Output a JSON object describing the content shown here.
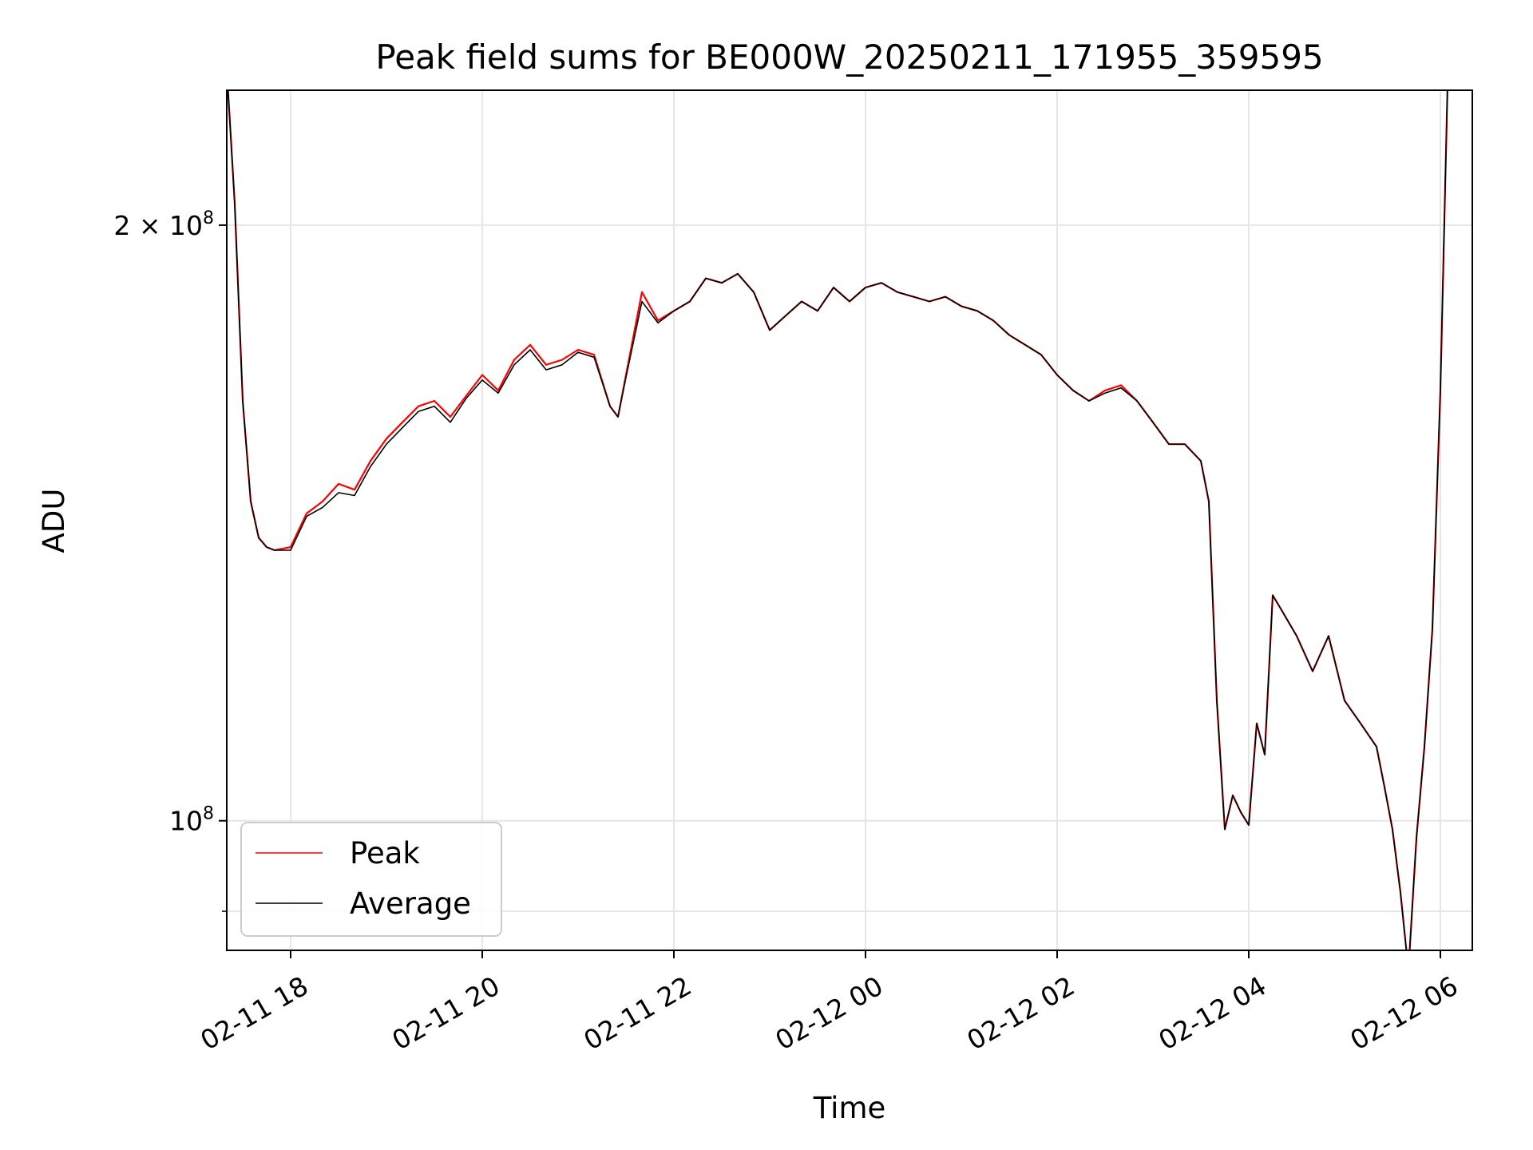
{
  "chart_data": {
    "type": "line",
    "title": "Peak field sums for BE000W_20250211_171955_359595",
    "xlabel": "Time",
    "ylabel": "ADU",
    "yscale": "log",
    "ylim": [
      86000000,
      234000000
    ],
    "xlim": [
      "2025-02-11 17:20",
      "2025-02-12 06:20"
    ],
    "grid": true,
    "legend_position": "lower-left",
    "x_ticks": [
      {
        "value": "2025-02-11 18:00",
        "label": "02-11 18"
      },
      {
        "value": "2025-02-11 20:00",
        "label": "02-11 20"
      },
      {
        "value": "2025-02-11 22:00",
        "label": "02-11 22"
      },
      {
        "value": "2025-02-12 00:00",
        "label": "02-12 00"
      },
      {
        "value": "2025-02-12 02:00",
        "label": "02-12 02"
      },
      {
        "value": "2025-02-12 04:00",
        "label": "02-12 04"
      },
      {
        "value": "2025-02-12 06:00",
        "label": "02-12 06"
      }
    ],
    "y_ticks_major": [
      {
        "value": 100000000,
        "base": "10",
        "exp": "8"
      },
      {
        "value": 200000000,
        "base": "2 × 10",
        "exp": "8"
      }
    ],
    "y_ticks_minor": [
      90000000
    ],
    "x": [
      "2025-02-11 17:20",
      "2025-02-11 17:25",
      "2025-02-11 17:30",
      "2025-02-11 17:35",
      "2025-02-11 17:40",
      "2025-02-11 17:45",
      "2025-02-11 17:50",
      "2025-02-11 18:00",
      "2025-02-11 18:10",
      "2025-02-11 18:20",
      "2025-02-11 18:30",
      "2025-02-11 18:40",
      "2025-02-11 18:50",
      "2025-02-11 19:00",
      "2025-02-11 19:10",
      "2025-02-11 19:20",
      "2025-02-11 19:30",
      "2025-02-11 19:40",
      "2025-02-11 19:50",
      "2025-02-11 20:00",
      "2025-02-11 20:10",
      "2025-02-11 20:20",
      "2025-02-11 20:30",
      "2025-02-11 20:40",
      "2025-02-11 20:50",
      "2025-02-11 21:00",
      "2025-02-11 21:10",
      "2025-02-11 21:20",
      "2025-02-11 21:25",
      "2025-02-11 21:30",
      "2025-02-11 21:40",
      "2025-02-11 21:50",
      "2025-02-11 22:00",
      "2025-02-11 22:10",
      "2025-02-11 22:20",
      "2025-02-11 22:30",
      "2025-02-11 22:40",
      "2025-02-11 22:50",
      "2025-02-11 23:00",
      "2025-02-11 23:10",
      "2025-02-11 23:20",
      "2025-02-11 23:30",
      "2025-02-11 23:40",
      "2025-02-11 23:50",
      "2025-02-12 00:00",
      "2025-02-12 00:10",
      "2025-02-12 00:20",
      "2025-02-12 00:30",
      "2025-02-12 00:40",
      "2025-02-12 00:50",
      "2025-02-12 01:00",
      "2025-02-12 01:10",
      "2025-02-12 01:20",
      "2025-02-12 01:30",
      "2025-02-12 01:40",
      "2025-02-12 01:50",
      "2025-02-12 02:00",
      "2025-02-12 02:10",
      "2025-02-12 02:20",
      "2025-02-12 02:30",
      "2025-02-12 02:40",
      "2025-02-12 02:50",
      "2025-02-12 03:00",
      "2025-02-12 03:10",
      "2025-02-12 03:20",
      "2025-02-12 03:30",
      "2025-02-12 03:35",
      "2025-02-12 03:40",
      "2025-02-12 03:45",
      "2025-02-12 03:50",
      "2025-02-12 03:55",
      "2025-02-12 04:00",
      "2025-02-12 04:05",
      "2025-02-12 04:10",
      "2025-02-12 04:15",
      "2025-02-12 04:20",
      "2025-02-12 04:30",
      "2025-02-12 04:40",
      "2025-02-12 04:50",
      "2025-02-12 05:00",
      "2025-02-12 05:10",
      "2025-02-12 05:20",
      "2025-02-12 05:25",
      "2025-02-12 05:30",
      "2025-02-12 05:35",
      "2025-02-12 05:40",
      "2025-02-12 05:45",
      "2025-02-12 05:50",
      "2025-02-12 05:55",
      "2025-02-12 06:00",
      "2025-02-12 06:05"
    ],
    "series": [
      {
        "name": "Peak",
        "color": "#ff0000",
        "values": [
          240000000,
          205000000,
          163000000,
          145000000,
          139000000,
          137500000,
          137000000,
          137500000,
          143000000,
          145000000,
          148000000,
          147000000,
          152000000,
          156000000,
          159000000,
          162000000,
          163000000,
          160000000,
          164000000,
          168000000,
          165000000,
          171000000,
          174000000,
          170000000,
          171000000,
          173000000,
          172000000,
          162000000,
          160000000,
          168000000,
          185000000,
          179000000,
          181000000,
          183000000,
          188000000,
          187000000,
          189000000,
          185000000,
          177000000,
          180000000,
          183000000,
          181000000,
          186000000,
          183000000,
          186000000,
          187000000,
          185000000,
          184000000,
          183000000,
          184000000,
          182000000,
          181000000,
          179000000,
          176000000,
          174000000,
          172000000,
          168000000,
          165000000,
          163000000,
          165000000,
          166000000,
          163000000,
          159000000,
          155000000,
          155000000,
          152000000,
          145000000,
          115000000,
          99000000,
          103000000,
          101000000,
          99500000,
          112000000,
          108000000,
          130000000,
          128000000,
          124000000,
          119000000,
          124000000,
          115000000,
          112000000,
          109000000,
          104000000,
          99000000,
          92000000,
          84000000,
          98000000,
          109000000,
          125000000,
          165000000,
          245000000
        ]
      },
      {
        "name": "Average",
        "color": "#000000",
        "values": [
          240000000,
          205000000,
          163000000,
          145000000,
          139000000,
          137500000,
          137000000,
          137000000,
          142500000,
          144000000,
          146500000,
          146000000,
          151000000,
          155000000,
          158000000,
          161000000,
          162000000,
          159000000,
          163500000,
          167000000,
          164500000,
          170000000,
          173000000,
          169000000,
          170000000,
          172500000,
          171500000,
          162000000,
          160000000,
          167500000,
          183000000,
          178500000,
          181000000,
          183000000,
          188000000,
          187000000,
          189000000,
          185000000,
          177000000,
          180000000,
          183000000,
          181000000,
          186000000,
          183000000,
          186000000,
          187000000,
          185000000,
          184000000,
          183000000,
          184000000,
          182000000,
          181000000,
          179000000,
          176000000,
          174000000,
          172000000,
          168000000,
          165000000,
          163000000,
          164500000,
          165500000,
          163000000,
          159000000,
          155000000,
          155000000,
          152000000,
          145000000,
          115000000,
          99000000,
          103000000,
          101000000,
          99500000,
          112000000,
          108000000,
          130000000,
          128000000,
          124000000,
          119000000,
          124000000,
          115000000,
          112000000,
          109000000,
          104000000,
          99000000,
          92000000,
          84000000,
          98000000,
          109000000,
          125000000,
          165000000,
          245000000
        ]
      }
    ]
  }
}
